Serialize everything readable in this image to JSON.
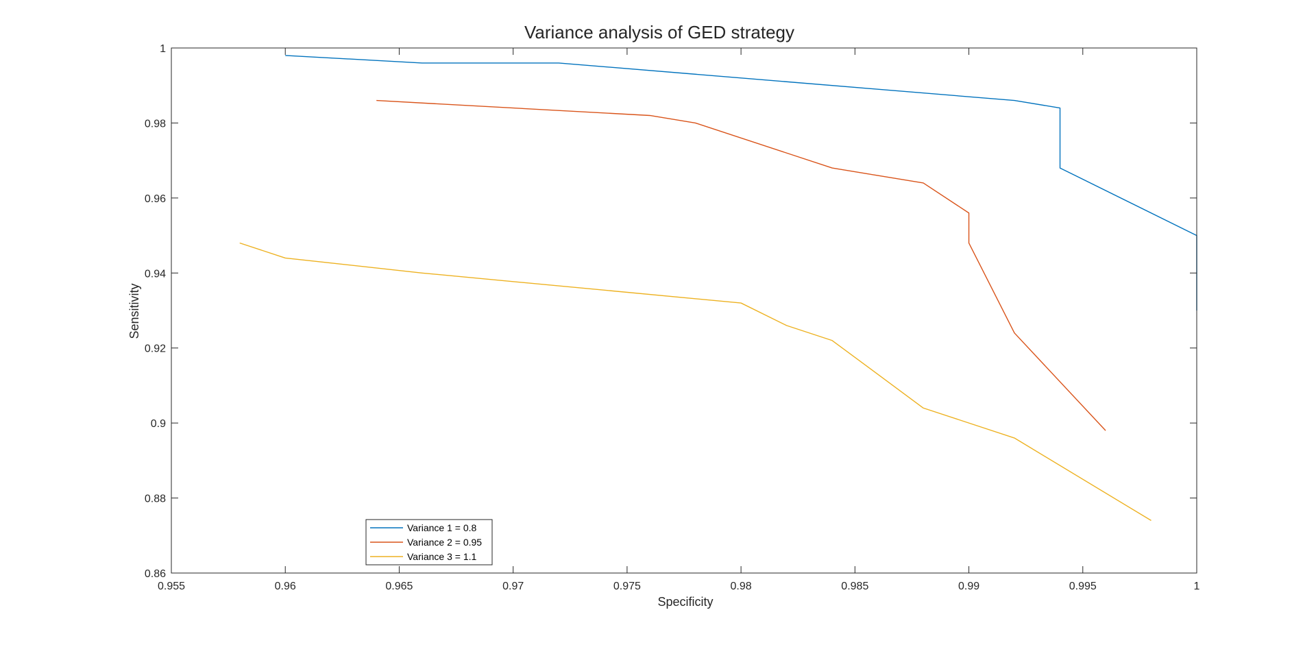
{
  "chart_data": {
    "type": "line",
    "title": "Variance analysis of GED strategy",
    "xlabel": "Specificity",
    "ylabel": "Sensitivity",
    "xlim": [
      0.955,
      1
    ],
    "ylim": [
      0.86,
      1
    ],
    "xticks": [
      0.955,
      0.96,
      0.965,
      0.97,
      0.975,
      0.98,
      0.985,
      0.99,
      0.995,
      1
    ],
    "yticks": [
      0.86,
      0.88,
      0.9,
      0.92,
      0.94,
      0.96,
      0.98,
      1
    ],
    "xtick_labels": [
      "0.955",
      "0.96",
      "0.965",
      "0.97",
      "0.975",
      "0.98",
      "0.985",
      "0.99",
      "0.995",
      "1"
    ],
    "ytick_labels": [
      "0.86",
      "0.88",
      "0.9",
      "0.92",
      "0.94",
      "0.96",
      "0.98",
      "1"
    ],
    "grid": false,
    "box": true,
    "legend_position": "bottom-left",
    "series": [
      {
        "name": "Variance 1 = 0.8",
        "color": "#0072BD",
        "x": [
          0.96,
          0.966,
          0.972,
          0.992,
          0.994,
          0.994,
          1.0,
          1.0
        ],
        "y": [
          0.998,
          0.996,
          0.996,
          0.986,
          0.984,
          0.968,
          0.95,
          0.93
        ]
      },
      {
        "name": "Variance 2 = 0.95",
        "color": "#D95319",
        "x": [
          0.964,
          0.976,
          0.978,
          0.984,
          0.988,
          0.99,
          0.99,
          0.992,
          0.996
        ],
        "y": [
          0.986,
          0.982,
          0.98,
          0.968,
          0.964,
          0.956,
          0.948,
          0.924,
          0.898
        ]
      },
      {
        "name": "Variance 3 = 1.1",
        "color": "#EDB120",
        "x": [
          0.958,
          0.96,
          0.966,
          0.98,
          0.982,
          0.984,
          0.988,
          0.992,
          0.998
        ],
        "y": [
          0.948,
          0.944,
          0.94,
          0.932,
          0.926,
          0.922,
          0.904,
          0.896,
          0.874
        ]
      }
    ]
  }
}
